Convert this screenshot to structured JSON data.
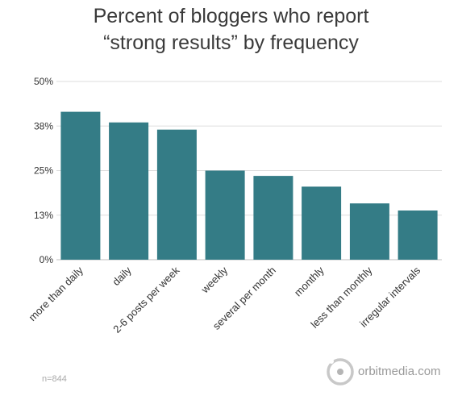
{
  "chart_data": {
    "type": "bar",
    "title_lines": [
      "Percent of bloggers who report",
      "“strong results” by frequency"
    ],
    "categories": [
      "more than daily",
      "daily",
      "2-6 posts per week",
      "weekly",
      "several per month",
      "monthly",
      "less than monthly",
      "irregular intervals"
    ],
    "values": [
      41.5,
      38.5,
      36.5,
      25,
      23.5,
      20.5,
      15.8,
      13.8
    ],
    "ylim": [
      0,
      50
    ],
    "yticks": [
      0,
      12.5,
      25,
      37.5,
      50
    ],
    "ytick_labels": [
      "0%",
      "13%",
      "25%",
      "38%",
      "50%"
    ],
    "grid": true,
    "bar_color": "#347c86"
  },
  "footer": {
    "sample_note": "n=844",
    "brand_text": "orbitmedia.com",
    "brand_logo_icon": "orbit-circle-icon"
  }
}
